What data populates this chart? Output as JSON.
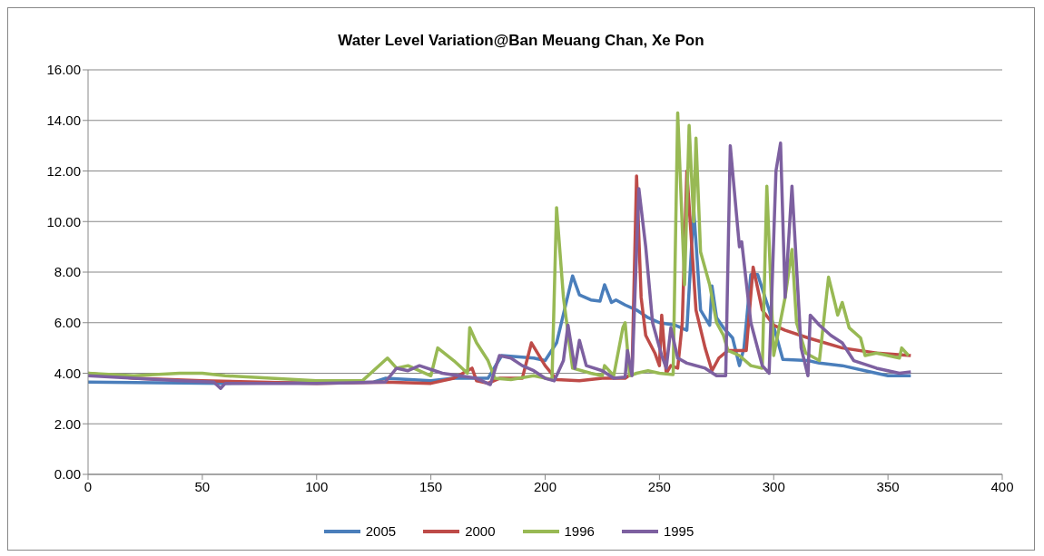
{
  "chart_data": {
    "type": "line",
    "title": "Water Level Variation@Ban Meuang Chan, Xe Pon",
    "xlim": [
      0,
      400
    ],
    "xticks": [
      0,
      50,
      100,
      150,
      200,
      250,
      300,
      350,
      400
    ],
    "ylim": [
      0,
      16
    ],
    "yticks": [
      {
        "value": 0,
        "label": "0.00"
      },
      {
        "value": 2,
        "label": "2.00"
      },
      {
        "value": 4,
        "label": "4.00"
      },
      {
        "value": 6,
        "label": "6.00"
      },
      {
        "value": 8,
        "label": "8.00"
      },
      {
        "value": 10,
        "label": "10.00"
      },
      {
        "value": 12,
        "label": "12.00"
      },
      {
        "value": 14,
        "label": "14.00"
      },
      {
        "value": 16,
        "label": "16.00"
      }
    ],
    "grid": "y",
    "legend": "bottom",
    "marker": "none",
    "line_style": "solid",
    "series": [
      {
        "name": "2005",
        "color": "#4a7ebb",
        "x": [
          0,
          60,
          125,
          130,
          150,
          160,
          175,
          181,
          195,
          200,
          205,
          212,
          215,
          220,
          224,
          226,
          229,
          231,
          235,
          240,
          245,
          250,
          257,
          262,
          265,
          268,
          272,
          273,
          275,
          278,
          282,
          285,
          287,
          290,
          293,
          298,
          304,
          315,
          320,
          330,
          340,
          350,
          360
        ],
        "values": [
          3.65,
          3.6,
          3.65,
          3.8,
          3.7,
          3.8,
          3.8,
          4.7,
          4.6,
          4.5,
          5.2,
          7.85,
          7.1,
          6.9,
          6.85,
          7.5,
          6.8,
          6.9,
          6.7,
          6.5,
          6.2,
          6.0,
          5.9,
          5.7,
          10.5,
          6.5,
          5.9,
          7.45,
          6.2,
          5.8,
          5.4,
          4.3,
          5.0,
          7.9,
          7.9,
          6.5,
          4.55,
          4.5,
          4.4,
          4.3,
          4.1,
          3.9,
          3.9
        ]
      },
      {
        "name": "2000",
        "color": "#be4b48",
        "x": [
          0,
          20,
          50,
          100,
          130,
          150,
          160,
          168,
          170,
          175,
          180,
          190,
          194,
          200,
          205,
          215,
          225,
          235,
          238,
          240,
          242,
          244,
          248,
          250,
          251,
          253,
          255,
          258,
          260,
          262,
          266,
          270,
          273,
          276,
          280,
          288,
          291,
          295,
          300,
          305,
          315,
          330,
          345,
          360
        ],
        "values": [
          4.0,
          3.8,
          3.7,
          3.6,
          3.65,
          3.6,
          3.8,
          4.2,
          3.7,
          3.6,
          3.8,
          3.8,
          5.2,
          4.3,
          3.75,
          3.7,
          3.8,
          3.8,
          4.0,
          11.8,
          7.0,
          5.5,
          4.8,
          4.3,
          6.3,
          4.0,
          4.3,
          4.2,
          6.0,
          12.0,
          6.5,
          5.0,
          4.1,
          4.6,
          4.9,
          4.9,
          8.2,
          6.5,
          5.9,
          5.7,
          5.4,
          5.0,
          4.8,
          4.7
        ]
      },
      {
        "name": "1996",
        "color": "#98b954",
        "x": [
          0,
          20,
          40,
          50,
          60,
          80,
          100,
          120,
          131,
          135,
          140,
          150,
          153,
          160,
          166,
          167,
          170,
          175,
          178,
          185,
          195,
          203,
          205,
          208,
          212,
          220,
          225,
          226,
          230,
          234,
          235,
          237,
          240,
          245,
          250,
          256,
          258,
          261,
          263,
          265,
          266,
          268,
          272,
          275,
          278,
          280,
          285,
          290,
          295,
          297,
          300,
          305,
          308,
          310,
          314,
          320,
          324,
          327,
          328,
          330,
          333,
          338,
          340,
          345,
          355,
          356,
          359
        ],
        "values": [
          4.0,
          3.9,
          4.0,
          4.0,
          3.9,
          3.8,
          3.7,
          3.7,
          4.6,
          4.2,
          4.3,
          3.9,
          5.0,
          4.5,
          4.0,
          5.8,
          5.2,
          4.5,
          3.8,
          3.75,
          3.9,
          3.75,
          10.55,
          7.0,
          4.2,
          4.0,
          3.9,
          4.3,
          3.9,
          5.8,
          6.0,
          3.9,
          4.0,
          4.1,
          4.0,
          3.95,
          14.3,
          7.5,
          13.8,
          10.0,
          13.3,
          8.8,
          7.5,
          6.0,
          5.5,
          4.9,
          4.7,
          4.3,
          4.2,
          11.4,
          4.7,
          7.0,
          8.9,
          6.0,
          4.8,
          4.5,
          7.8,
          6.7,
          6.3,
          6.8,
          5.8,
          5.4,
          4.7,
          4.8,
          4.6,
          5.0,
          4.7
        ]
      },
      {
        "name": "1995",
        "color": "#7d60a0",
        "x": [
          0,
          20,
          40,
          55,
          58,
          60,
          100,
          130,
          135,
          140,
          145,
          155,
          170,
          176,
          180,
          185,
          190,
          195,
          200,
          204,
          208,
          210,
          213,
          215,
          218,
          225,
          230,
          235,
          236,
          238,
          241,
          244,
          247,
          251,
          253,
          255,
          258,
          262,
          270,
          275,
          279,
          281,
          285,
          286,
          290,
          295,
          298,
          301,
          303,
          305,
          308,
          312,
          315,
          316,
          320,
          325,
          330,
          335,
          345,
          355,
          360
        ],
        "values": [
          3.9,
          3.8,
          3.7,
          3.65,
          3.4,
          3.6,
          3.6,
          3.65,
          4.2,
          4.1,
          4.3,
          4.0,
          3.8,
          3.55,
          4.7,
          4.6,
          4.3,
          4.1,
          3.8,
          3.7,
          4.5,
          5.9,
          4.2,
          5.3,
          4.3,
          4.1,
          3.8,
          3.85,
          4.9,
          3.9,
          11.3,
          9.0,
          6.0,
          4.7,
          4.2,
          5.8,
          4.6,
          4.4,
          4.2,
          3.9,
          3.9,
          13.0,
          9.0,
          9.2,
          6.0,
          4.3,
          4.0,
          12.0,
          13.1,
          7.0,
          11.4,
          5.0,
          3.9,
          6.3,
          5.9,
          5.5,
          5.2,
          4.5,
          4.2,
          4.0,
          4.05
        ]
      }
    ]
  }
}
